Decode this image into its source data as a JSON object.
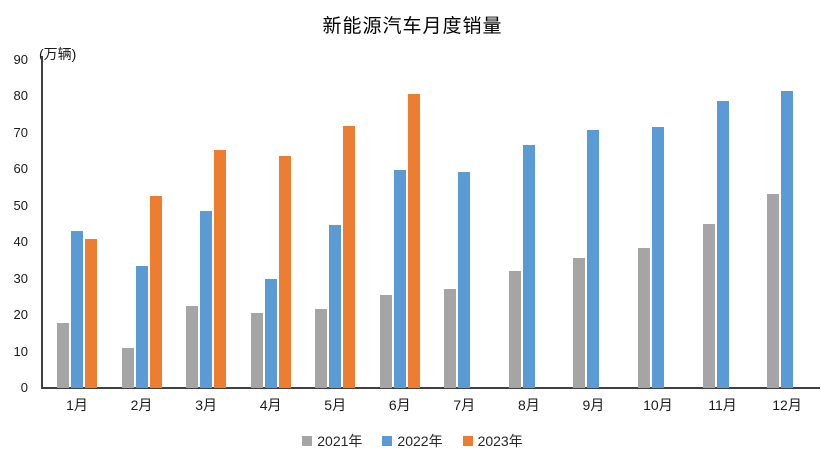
{
  "chart_data": {
    "type": "bar",
    "title": "新能源汽车月度销量",
    "y_axis_unit": "(万辆)",
    "categories": [
      "1月",
      "2月",
      "3月",
      "4月",
      "5月",
      "6月",
      "7月",
      "8月",
      "9月",
      "10月",
      "11月",
      "12月"
    ],
    "series": [
      {
        "name": "2021年",
        "color": "#A5A5A5",
        "values": [
          17.9,
          11.0,
          22.6,
          20.6,
          21.7,
          25.6,
          27.1,
          32.1,
          35.7,
          38.3,
          45.0,
          53.1
        ]
      },
      {
        "name": "2022年",
        "color": "#5B9BD5",
        "values": [
          43.1,
          33.4,
          48.4,
          29.9,
          44.7,
          59.6,
          59.3,
          66.6,
          70.8,
          71.4,
          78.6,
          81.4
        ]
      },
      {
        "name": "2023年",
        "color": "#ED7D31",
        "values": [
          40.8,
          52.5,
          65.3,
          63.6,
          71.7,
          80.6,
          null,
          null,
          null,
          null,
          null,
          null
        ]
      }
    ],
    "ylim": [
      0,
      90
    ],
    "y_tick_step": 10,
    "y_ticks": [
      0,
      10,
      20,
      30,
      40,
      50,
      60,
      70,
      80,
      90
    ],
    "grid": false,
    "legend_position": "bottom",
    "axis_color": "#404040"
  }
}
